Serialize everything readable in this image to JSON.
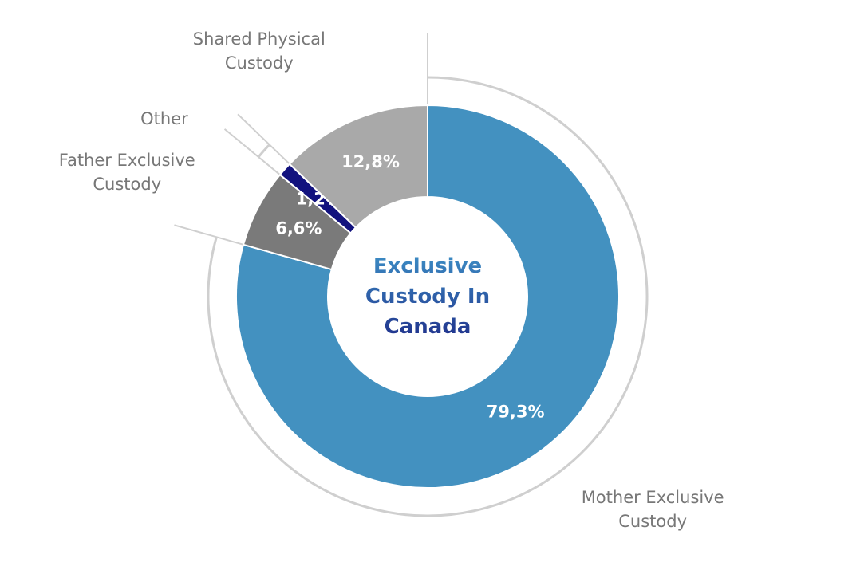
{
  "chart_data": {
    "type": "donut",
    "title": "Exclusive Custody In Canada",
    "categories": [
      "Mother Exclusive Custody",
      "Father Exclusive Custody",
      "Other",
      "Shared Physical Custody"
    ],
    "values": [
      79.3,
      6.6,
      1.2,
      12.8
    ],
    "value_labels": [
      "79,3%",
      "6,6%",
      "1,2%",
      "12,8%"
    ],
    "colors": [
      "#4391c0",
      "#7a7a7a",
      "#12127e",
      "#a9a9a9"
    ]
  }
}
